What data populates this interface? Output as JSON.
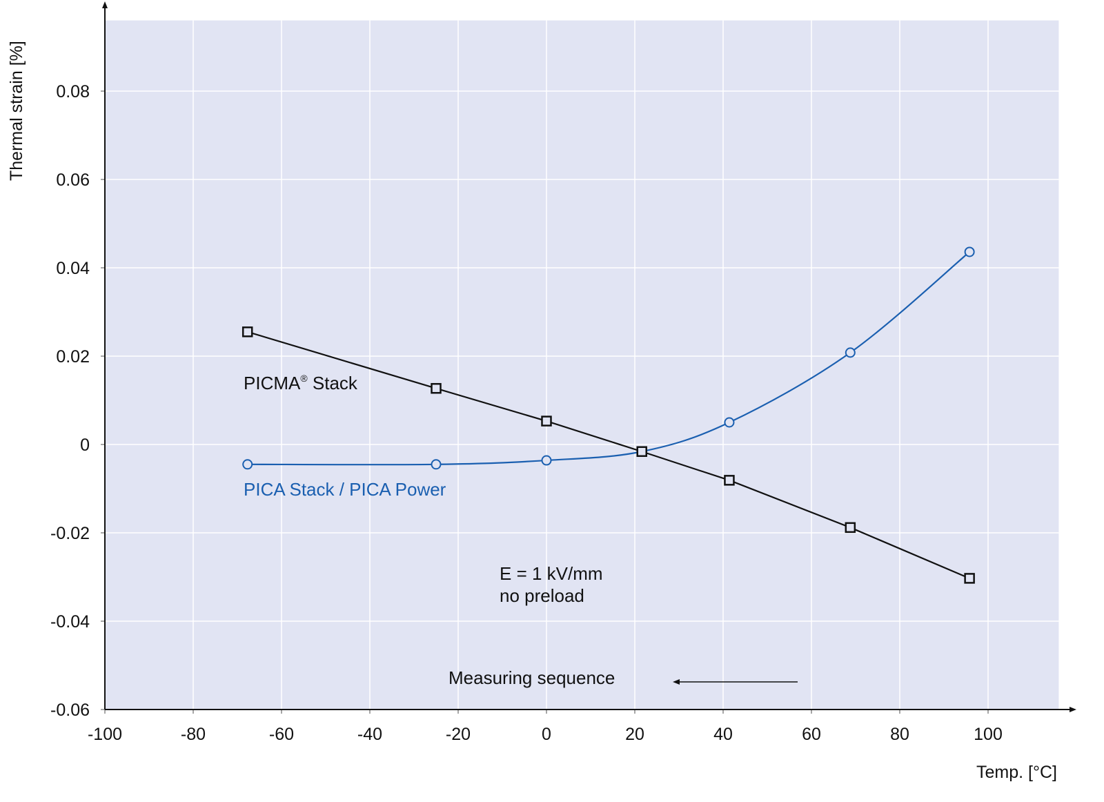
{
  "chart_data": {
    "type": "line",
    "title": "",
    "xlabel": "Temp. [°C]",
    "ylabel": "Thermal strain [%]",
    "xlim": [
      -100,
      116
    ],
    "ylim": [
      -0.06,
      0.096
    ],
    "xticks": [
      -100,
      -80,
      -60,
      -40,
      -20,
      0,
      20,
      40,
      60,
      80,
      100
    ],
    "xtick_labels": [
      "-100",
      "-80",
      "-60",
      "-40",
      "-20",
      "0",
      "20",
      "40",
      "60",
      "80",
      "100"
    ],
    "yticks": [
      -0.06,
      -0.04,
      -0.02,
      0,
      0.02,
      0.04,
      0.06,
      0.08
    ],
    "ytick_labels": [
      "-0.06",
      "-0.04",
      "-0.02",
      "0",
      "0.02",
      "0.04",
      "0.06",
      "0.08"
    ],
    "grid": true,
    "series": [
      {
        "name": "PICMA® Stack",
        "label_main": "PICMA",
        "label_sup": "®",
        "label_rest": " Stack",
        "color": "#111111",
        "marker": "square",
        "smooth": false,
        "x": [
          -67.7,
          -25,
          0,
          21.6,
          41.4,
          68.8,
          95.8
        ],
        "y": [
          0.0255,
          0.0127,
          0.0053,
          -0.0016,
          -0.0081,
          -0.0188,
          -0.0303
        ]
      },
      {
        "name": "PICA Stack / PICA Power",
        "color": "#1a5fb0",
        "marker": "circle",
        "smooth": true,
        "x": [
          -67.7,
          -25,
          0,
          21.6,
          41.4,
          68.8,
          95.8
        ],
        "y": [
          -0.0045,
          -0.0045,
          -0.0036,
          -0.0016,
          0.005,
          0.0208,
          0.0436
        ]
      }
    ],
    "annotations": {
      "field_line1": "E = 1 kV/mm",
      "field_line2": "no preload",
      "sequence": "Measuring sequence"
    },
    "colors": {
      "plot_bg": "#e1e4f3",
      "grid": "#ffffff",
      "axis": "#111111"
    }
  }
}
